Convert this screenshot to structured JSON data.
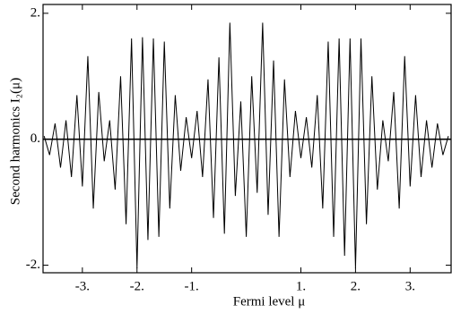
{
  "chart_data": {
    "type": "line",
    "xlabel": "Fermi level  μ",
    "ylabel": "Second harmonics  I₂(μ)",
    "color": "#000000",
    "x": [
      -3.7,
      -3.6,
      -3.5,
      -3.4,
      -3.3,
      -3.2,
      -3.1,
      -3.0,
      -2.9,
      -2.8,
      -2.7,
      -2.6,
      -2.5,
      -2.4,
      -2.3,
      -2.2,
      -2.1,
      -2.0,
      -1.9,
      -1.8,
      -1.7,
      -1.6,
      -1.5,
      -1.4,
      -1.3,
      -1.2,
      -1.1,
      -1.0,
      -0.9,
      -0.8,
      -0.7,
      -0.6,
      -0.5,
      -0.4,
      -0.3,
      -0.2,
      -0.1,
      0.0,
      0.1,
      0.2,
      0.3,
      0.4,
      0.5,
      0.6,
      0.7,
      0.8,
      0.9,
      1.0,
      1.1,
      1.2,
      1.3,
      1.4,
      1.5,
      1.6,
      1.7,
      1.8,
      1.9,
      2.0,
      2.1,
      2.2,
      2.3,
      2.4,
      2.5,
      2.6,
      2.7,
      2.8,
      2.9,
      3.0,
      3.1,
      3.2,
      3.3,
      3.4,
      3.5,
      3.6,
      3.7
    ],
    "values": [
      0.05,
      -0.25,
      0.25,
      -0.45,
      0.3,
      -0.6,
      0.7,
      -0.75,
      1.32,
      -1.1,
      0.75,
      -0.35,
      0.3,
      -0.8,
      1.0,
      -1.35,
      1.6,
      -2.05,
      1.62,
      -1.6,
      1.6,
      -1.55,
      1.55,
      -1.1,
      0.7,
      -0.5,
      0.35,
      -0.3,
      0.45,
      -0.6,
      0.95,
      -1.25,
      1.3,
      -1.5,
      1.85,
      -0.9,
      0.6,
      -1.55,
      1.0,
      -0.85,
      1.85,
      -1.2,
      1.25,
      -1.55,
      0.95,
      -0.6,
      0.45,
      -0.3,
      0.35,
      -0.45,
      0.7,
      -1.1,
      1.55,
      -1.55,
      1.6,
      -1.85,
      1.6,
      -2.05,
      1.6,
      -1.35,
      1.0,
      -0.8,
      0.3,
      -0.35,
      0.75,
      -1.1,
      1.32,
      -0.75,
      0.7,
      -0.6,
      0.3,
      -0.45,
      0.25,
      -0.25,
      0.05
    ],
    "xlim": [
      -3.72,
      3.75
    ],
    "ylim": [
      -2.12,
      2.14
    ],
    "xticks": [
      {
        "value": -3,
        "label": "-3."
      },
      {
        "value": -2,
        "label": "-2."
      },
      {
        "value": -1,
        "label": "-1."
      },
      {
        "value": 1,
        "label": "1."
      },
      {
        "value": 2,
        "label": "2."
      },
      {
        "value": 3,
        "label": "3."
      }
    ],
    "yticks": [
      {
        "value": -2,
        "label": "-2."
      },
      {
        "value": 0,
        "label": "0."
      },
      {
        "value": 2,
        "label": "2."
      }
    ]
  }
}
